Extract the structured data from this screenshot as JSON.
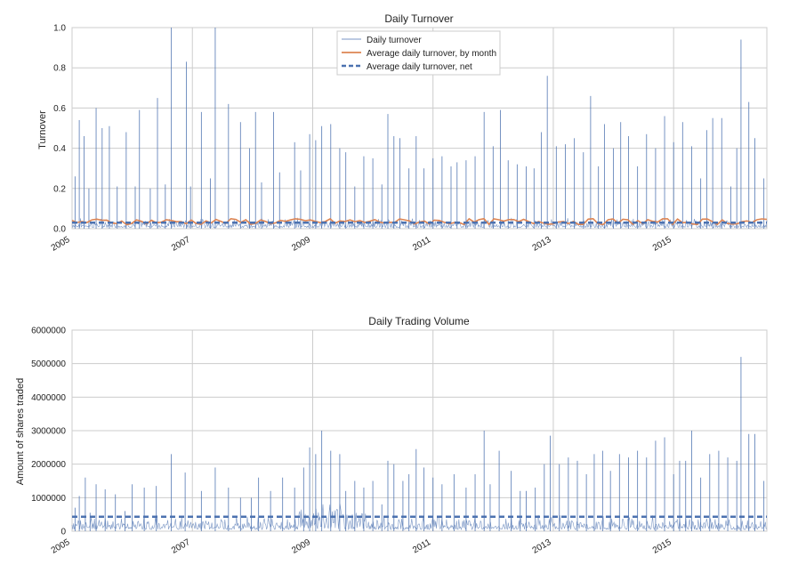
{
  "chart_data": [
    {
      "type": "line",
      "title": "Daily Turnover",
      "xlabel": "",
      "ylabel": "Turnover",
      "xlim": [
        2005,
        2016.55
      ],
      "ylim": [
        0,
        1.0
      ],
      "x_ticks": [
        "2005",
        "2007",
        "2009",
        "2011",
        "2013",
        "2015"
      ],
      "y_ticks": [
        "0.0",
        "0.2",
        "0.4",
        "0.6",
        "0.8",
        "1.0"
      ],
      "grid": true,
      "legend": {
        "placement": "top-center",
        "entries": [
          "Daily turnover",
          "Average daily turnover, by month",
          "Average daily turnover, net"
        ]
      },
      "series": [
        {
          "name": "Daily turnover",
          "color": "#4c72b0",
          "style": "thin-line",
          "values": [
            [
              2005.05,
              0.26
            ],
            [
              2005.12,
              0.54
            ],
            [
              2005.2,
              0.46
            ],
            [
              2005.28,
              0.2
            ],
            [
              2005.4,
              0.6
            ],
            [
              2005.5,
              0.5
            ],
            [
              2005.62,
              0.51
            ],
            [
              2005.75,
              0.21
            ],
            [
              2005.9,
              0.48
            ],
            [
              2006.05,
              0.21
            ],
            [
              2006.12,
              0.59
            ],
            [
              2006.3,
              0.2
            ],
            [
              2006.42,
              0.65
            ],
            [
              2006.55,
              0.22
            ],
            [
              2006.65,
              1.0
            ],
            [
              2006.9,
              0.83
            ],
            [
              2006.97,
              0.21
            ],
            [
              2007.15,
              0.58
            ],
            [
              2007.3,
              0.25
            ],
            [
              2007.38,
              1.0
            ],
            [
              2007.6,
              0.62
            ],
            [
              2007.8,
              0.53
            ],
            [
              2007.95,
              0.4
            ],
            [
              2008.05,
              0.58
            ],
            [
              2008.15,
              0.23
            ],
            [
              2008.35,
              0.58
            ],
            [
              2008.45,
              0.28
            ],
            [
              2008.7,
              0.43
            ],
            [
              2008.8,
              0.29
            ],
            [
              2008.95,
              0.47
            ],
            [
              2009.05,
              0.44
            ],
            [
              2009.15,
              0.51
            ],
            [
              2009.3,
              0.52
            ],
            [
              2009.45,
              0.4
            ],
            [
              2009.55,
              0.38
            ],
            [
              2009.7,
              0.21
            ],
            [
              2009.85,
              0.36
            ],
            [
              2010.0,
              0.35
            ],
            [
              2010.15,
              0.22
            ],
            [
              2010.25,
              0.57
            ],
            [
              2010.35,
              0.46
            ],
            [
              2010.45,
              0.45
            ],
            [
              2010.6,
              0.3
            ],
            [
              2010.72,
              0.46
            ],
            [
              2010.85,
              0.3
            ],
            [
              2011.0,
              0.35
            ],
            [
              2011.15,
              0.36
            ],
            [
              2011.3,
              0.31
            ],
            [
              2011.4,
              0.33
            ],
            [
              2011.55,
              0.34
            ],
            [
              2011.7,
              0.36
            ],
            [
              2011.85,
              0.58
            ],
            [
              2012.0,
              0.41
            ],
            [
              2012.12,
              0.59
            ],
            [
              2012.25,
              0.34
            ],
            [
              2012.4,
              0.32
            ],
            [
              2012.55,
              0.31
            ],
            [
              2012.68,
              0.3
            ],
            [
              2012.8,
              0.48
            ],
            [
              2012.9,
              0.76
            ],
            [
              2013.05,
              0.41
            ],
            [
              2013.2,
              0.42
            ],
            [
              2013.35,
              0.45
            ],
            [
              2013.5,
              0.38
            ],
            [
              2013.62,
              0.66
            ],
            [
              2013.75,
              0.31
            ],
            [
              2013.85,
              0.52
            ],
            [
              2014.0,
              0.4
            ],
            [
              2014.12,
              0.53
            ],
            [
              2014.25,
              0.46
            ],
            [
              2014.4,
              0.31
            ],
            [
              2014.55,
              0.47
            ],
            [
              2014.7,
              0.4
            ],
            [
              2014.85,
              0.56
            ],
            [
              2015.0,
              0.43
            ],
            [
              2015.15,
              0.53
            ],
            [
              2015.3,
              0.41
            ],
            [
              2015.45,
              0.25
            ],
            [
              2015.55,
              0.49
            ],
            [
              2015.65,
              0.55
            ],
            [
              2015.8,
              0.55
            ],
            [
              2015.95,
              0.21
            ],
            [
              2016.05,
              0.4
            ],
            [
              2016.12,
              0.94
            ],
            [
              2016.25,
              0.63
            ],
            [
              2016.35,
              0.45
            ],
            [
              2016.5,
              0.25
            ]
          ]
        },
        {
          "name": "Average daily turnover, by month",
          "color": "#dd8452",
          "style": "line",
          "level": 0.035,
          "amplitude": 0.015
        },
        {
          "name": "Average daily turnover, net",
          "color": "#4c72b0",
          "style": "dashed",
          "level": 0.03
        }
      ]
    },
    {
      "type": "line",
      "title": "Daily Trading Volume",
      "xlabel": "",
      "ylabel": "Amount of shares traded",
      "xlim": [
        2005,
        2016.55
      ],
      "ylim": [
        0,
        6000000
      ],
      "x_ticks": [
        "2005",
        "2007",
        "2009",
        "2011",
        "2013",
        "2015"
      ],
      "y_ticks": [
        "0",
        "1000000",
        "2000000",
        "3000000",
        "4000000",
        "5000000",
        "6000000"
      ],
      "grid": true,
      "series": [
        {
          "name": "",
          "color": "#4c72b0",
          "style": "thin-line",
          "values": [
            [
              2005.05,
              700000
            ],
            [
              2005.12,
              1050000
            ],
            [
              2005.22,
              1600000
            ],
            [
              2005.3,
              550000
            ],
            [
              2005.4,
              1400000
            ],
            [
              2005.55,
              1250000
            ],
            [
              2005.72,
              1100000
            ],
            [
              2005.88,
              600000
            ],
            [
              2006.0,
              1400000
            ],
            [
              2006.2,
              1300000
            ],
            [
              2006.4,
              1350000
            ],
            [
              2006.65,
              2300000
            ],
            [
              2006.88,
              1750000
            ],
            [
              2007.15,
              1200000
            ],
            [
              2007.38,
              1900000
            ],
            [
              2007.6,
              1300000
            ],
            [
              2007.8,
              1000000
            ],
            [
              2007.98,
              1000000
            ],
            [
              2008.1,
              1600000
            ],
            [
              2008.3,
              1200000
            ],
            [
              2008.5,
              1600000
            ],
            [
              2008.7,
              1300000
            ],
            [
              2008.85,
              1900000
            ],
            [
              2008.95,
              2500000
            ],
            [
              2009.05,
              2300000
            ],
            [
              2009.15,
              3000000
            ],
            [
              2009.3,
              2400000
            ],
            [
              2009.45,
              2300000
            ],
            [
              2009.55,
              1200000
            ],
            [
              2009.7,
              1500000
            ],
            [
              2009.85,
              1300000
            ],
            [
              2010.0,
              1500000
            ],
            [
              2010.15,
              800000
            ],
            [
              2010.25,
              2100000
            ],
            [
              2010.35,
              2000000
            ],
            [
              2010.5,
              1500000
            ],
            [
              2010.6,
              1700000
            ],
            [
              2010.72,
              2450000
            ],
            [
              2010.85,
              1900000
            ],
            [
              2011.0,
              1600000
            ],
            [
              2011.15,
              1400000
            ],
            [
              2011.35,
              1700000
            ],
            [
              2011.55,
              1300000
            ],
            [
              2011.7,
              1700000
            ],
            [
              2011.85,
              3000000
            ],
            [
              2011.95,
              1400000
            ],
            [
              2012.1,
              2400000
            ],
            [
              2012.3,
              1800000
            ],
            [
              2012.45,
              1200000
            ],
            [
              2012.55,
              1200000
            ],
            [
              2012.7,
              1300000
            ],
            [
              2012.85,
              2000000
            ],
            [
              2012.95,
              2850000
            ],
            [
              2013.1,
              2000000
            ],
            [
              2013.25,
              2200000
            ],
            [
              2013.4,
              2100000
            ],
            [
              2013.55,
              1700000
            ],
            [
              2013.68,
              2300000
            ],
            [
              2013.82,
              2400000
            ],
            [
              2013.95,
              1800000
            ],
            [
              2014.1,
              2300000
            ],
            [
              2014.25,
              2200000
            ],
            [
              2014.4,
              2400000
            ],
            [
              2014.55,
              2200000
            ],
            [
              2014.7,
              2700000
            ],
            [
              2014.85,
              2800000
            ],
            [
              2015.0,
              1700000
            ],
            [
              2015.1,
              2100000
            ],
            [
              2015.2,
              2100000
            ],
            [
              2015.3,
              3000000
            ],
            [
              2015.45,
              1600000
            ],
            [
              2015.6,
              2300000
            ],
            [
              2015.75,
              2400000
            ],
            [
              2015.9,
              2200000
            ],
            [
              2016.05,
              2100000
            ],
            [
              2016.12,
              5200000
            ],
            [
              2016.25,
              2900000
            ],
            [
              2016.35,
              2900000
            ],
            [
              2016.5,
              1500000
            ]
          ]
        },
        {
          "name": "",
          "color": "#4c72b0",
          "style": "dashed",
          "level": 430000
        }
      ]
    }
  ]
}
